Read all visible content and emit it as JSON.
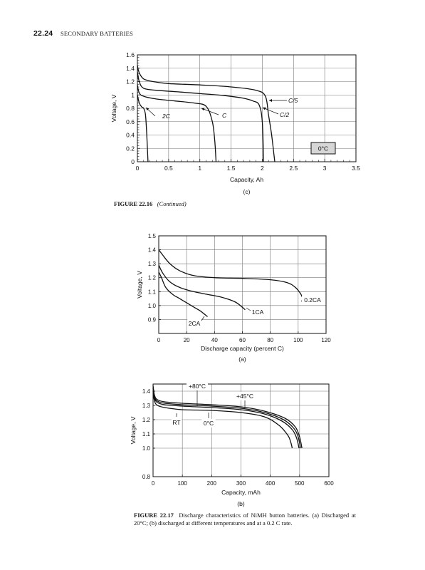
{
  "header": {
    "page_number": "22.24",
    "section_title": "SECONDARY BATTERIES"
  },
  "figure_22_16": {
    "label": "FIGURE 22.16",
    "note": "(Continued)"
  },
  "figure_22_17": {
    "label": "FIGURE 22.17",
    "caption": "Discharge characteristics of NiMH button batteries. (a) Discharged at 20°C; (b) discharged at different temperatures and at a 0.2 C rate."
  },
  "chart_data": [
    {
      "type": "line",
      "panel": "(c)",
      "xlabel": "Capacity, Ah",
      "ylabel": "Voltage, V",
      "xlim": [
        0,
        3.5
      ],
      "ylim": [
        0,
        1.6
      ],
      "xticks": [
        "0",
        "0.5",
        "1",
        "1.5",
        "2",
        "2.5",
        "3",
        "3.5"
      ],
      "yticks": [
        "0",
        "0.2",
        "0.4",
        "0.6",
        "0.8",
        "1",
        "1.2",
        "1.4",
        "1.6"
      ],
      "grid": true,
      "boxed_annotation": "0°C",
      "series": [
        {
          "name": "C/5",
          "x": [
            0,
            0.03,
            0.1,
            0.25,
            0.5,
            1.0,
            1.5,
            1.9,
            2.05,
            2.1,
            2.15,
            2.2
          ],
          "y": [
            1.44,
            1.33,
            1.24,
            1.2,
            1.17,
            1.15,
            1.12,
            1.07,
            0.98,
            0.7,
            0.4,
            0.0
          ]
        },
        {
          "name": "C/2",
          "x": [
            0,
            0.03,
            0.1,
            0.3,
            0.6,
            1.0,
            1.4,
            1.7,
            1.85,
            1.95,
            2.0,
            2.02
          ],
          "y": [
            1.35,
            1.2,
            1.1,
            1.07,
            1.05,
            1.02,
            0.99,
            0.95,
            0.91,
            0.85,
            0.6,
            0.0
          ]
        },
        {
          "name": "C",
          "x": [
            0,
            0.03,
            0.1,
            0.3,
            0.6,
            0.9,
            1.1,
            1.2,
            1.24,
            1.26
          ],
          "y": [
            1.15,
            1.03,
            0.98,
            0.94,
            0.91,
            0.88,
            0.83,
            0.6,
            0.3,
            0.0
          ]
        },
        {
          "name": "2C",
          "x": [
            0,
            0.03,
            0.07,
            0.1,
            0.13,
            0.15,
            0.17
          ],
          "y": [
            1.0,
            0.88,
            0.82,
            0.8,
            0.7,
            0.4,
            0.0
          ]
        }
      ],
      "annotations": [
        "C/5",
        "C/2",
        "C",
        "2C"
      ]
    },
    {
      "type": "line",
      "panel": "(a)",
      "xlabel": "Discharge capacity (percent C)",
      "ylabel": "Voltage, V",
      "xlim": [
        0,
        120
      ],
      "ylim": [
        0.8,
        1.5
      ],
      "xticks": [
        "0",
        "20",
        "40",
        "60",
        "80",
        "100",
        "120"
      ],
      "yticks": [
        "0.9",
        "1.0",
        "1.1",
        "1.2",
        "1.3",
        "1.4",
        "1.5"
      ],
      "grid": true,
      "series": [
        {
          "name": "0.2CA",
          "x": [
            0,
            3,
            8,
            15,
            25,
            40,
            60,
            80,
            92,
            98,
            102,
            104
          ],
          "y": [
            1.4,
            1.36,
            1.3,
            1.25,
            1.215,
            1.2,
            1.195,
            1.185,
            1.165,
            1.13,
            1.08,
            1.03
          ]
        },
        {
          "name": "1CA",
          "x": [
            0,
            3,
            8,
            15,
            25,
            35,
            45,
            55,
            62
          ],
          "y": [
            1.29,
            1.23,
            1.17,
            1.13,
            1.1,
            1.08,
            1.06,
            1.025,
            0.97
          ]
        },
        {
          "name": "2CA",
          "x": [
            0,
            2,
            5,
            10,
            15,
            20,
            25,
            30,
            35
          ],
          "y": [
            1.24,
            1.2,
            1.13,
            1.08,
            1.05,
            1.02,
            0.99,
            0.96,
            0.92
          ]
        }
      ],
      "annotations": [
        "0.2CA",
        "1CA",
        "2CA"
      ]
    },
    {
      "type": "line",
      "panel": "(b)",
      "xlabel": "Capacity, mAh",
      "ylabel": "Voltage, V",
      "xlim": [
        0,
        600
      ],
      "ylim": [
        0.8,
        1.45
      ],
      "xticks": [
        "0",
        "100",
        "200",
        "300",
        "400",
        "500",
        "600"
      ],
      "yticks": [
        "0.8",
        "1.0",
        "1.1",
        "1.2",
        "1.3",
        "1.4"
      ],
      "grid": true,
      "series": [
        {
          "name": "+80°C",
          "x": [
            0,
            5,
            15,
            40,
            100,
            200,
            300,
            380,
            430,
            460,
            470,
            475
          ],
          "y": [
            1.4,
            1.33,
            1.3,
            1.285,
            1.27,
            1.265,
            1.25,
            1.22,
            1.16,
            1.09,
            1.04,
            1.0
          ]
        },
        {
          "name": "RT",
          "x": [
            0,
            5,
            15,
            40,
            100,
            200,
            300,
            380,
            440,
            475,
            490,
            498
          ],
          "y": [
            1.42,
            1.35,
            1.32,
            1.305,
            1.295,
            1.285,
            1.27,
            1.24,
            1.19,
            1.13,
            1.07,
            1.0
          ]
        },
        {
          "name": "+45°C",
          "x": [
            0,
            5,
            15,
            40,
            100,
            200,
            300,
            380,
            445,
            480,
            495,
            503
          ],
          "y": [
            1.43,
            1.36,
            1.33,
            1.315,
            1.305,
            1.295,
            1.28,
            1.25,
            1.2,
            1.14,
            1.08,
            1.0
          ]
        },
        {
          "name": "0°C",
          "x": [
            0,
            5,
            15,
            40,
            100,
            200,
            300,
            380,
            450,
            485,
            500,
            508
          ],
          "y": [
            1.44,
            1.37,
            1.34,
            1.325,
            1.315,
            1.305,
            1.29,
            1.26,
            1.21,
            1.15,
            1.08,
            1.0
          ]
        }
      ],
      "annotations": [
        "+80°C",
        "RT",
        "+45°C",
        "0°C"
      ]
    }
  ]
}
